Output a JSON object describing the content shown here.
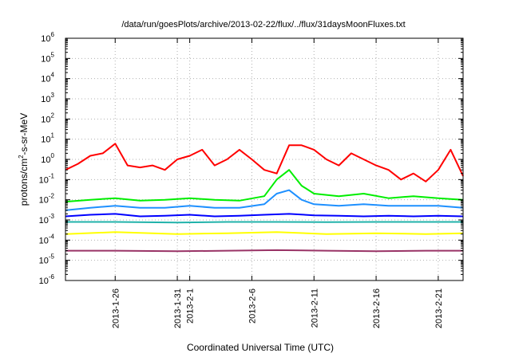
{
  "chart_data": {
    "type": "line",
    "title": "/data/run/goesPlots/archive/2013-02-22/flux/../flux/31daysMoonFluxes.txt",
    "xlabel": "Coordinated Universal Time (UTC)",
    "ylabel": "protons/cm2-s-sr-MeV",
    "ylabel_main": "protons/cm",
    "ylabel_sup": "2",
    "ylabel_rest": "-s-sr-MeV",
    "yscale": "log",
    "ylim": [
      1e-06,
      1000000.0
    ],
    "xlim": [
      "2013-01-22",
      "2013-02-23"
    ],
    "grid": true,
    "x_ticks": [
      {
        "date": "2013-01-26",
        "label": "2013-1-26"
      },
      {
        "date": "2013-01-31",
        "label": "2013-1-31"
      },
      {
        "date": "2013-02-01",
        "label": "2013-2-1"
      },
      {
        "date": "2013-02-06",
        "label": "2013-2-6"
      },
      {
        "date": "2013-02-11",
        "label": "2013-2-11"
      },
      {
        "date": "2013-02-16",
        "label": "2013-2-16"
      },
      {
        "date": "2013-02-21",
        "label": "2013-2-21"
      }
    ],
    "y_ticks": [
      {
        "value": 1e-06,
        "base": "10",
        "exp": "-6"
      },
      {
        "value": 1e-05,
        "base": "10",
        "exp": "-5"
      },
      {
        "value": 0.0001,
        "base": "10",
        "exp": "-4"
      },
      {
        "value": 0.001,
        "base": "10",
        "exp": "-3"
      },
      {
        "value": 0.01,
        "base": "10",
        "exp": "-2"
      },
      {
        "value": 0.1,
        "base": "10",
        "exp": "-1"
      },
      {
        "value": 1.0,
        "base": "10",
        "exp": "0"
      },
      {
        "value": 10.0,
        "base": "10",
        "exp": "1"
      },
      {
        "value": 100.0,
        "base": "10",
        "exp": "2"
      },
      {
        "value": 1000.0,
        "base": "10",
        "exp": "3"
      },
      {
        "value": 10000.0,
        "base": "10",
        "exp": "4"
      },
      {
        "value": 100000.0,
        "base": "10",
        "exp": "5"
      },
      {
        "value": 1000000.0,
        "base": "10",
        "exp": "6"
      }
    ],
    "series": [
      {
        "color": "#ff0000",
        "x": [
          "2013-01-22",
          "2013-01-23",
          "2013-01-24",
          "2013-01-25",
          "2013-01-26",
          "2013-01-27",
          "2013-01-28",
          "2013-01-29",
          "2013-01-30",
          "2013-01-31",
          "2013-02-01",
          "2013-02-02",
          "2013-02-03",
          "2013-02-04",
          "2013-02-05",
          "2013-02-06",
          "2013-02-07",
          "2013-02-08",
          "2013-02-09",
          "2013-02-10",
          "2013-02-11",
          "2013-02-12",
          "2013-02-13",
          "2013-02-14",
          "2013-02-15",
          "2013-02-16",
          "2013-02-17",
          "2013-02-18",
          "2013-02-19",
          "2013-02-20",
          "2013-02-21",
          "2013-02-22",
          "2013-02-23"
        ],
        "y": [
          0.3,
          0.6,
          1.5,
          2,
          6,
          0.5,
          0.4,
          0.5,
          0.3,
          1,
          1.5,
          3,
          0.5,
          1,
          3,
          1,
          0.3,
          0.2,
          5,
          5,
          3,
          1,
          0.5,
          2,
          1,
          0.5,
          0.3,
          0.1,
          0.2,
          0.08,
          0.3,
          3,
          0.15
        ]
      },
      {
        "color": "#00ee00",
        "x": [
          "2013-01-22",
          "2013-01-24",
          "2013-01-26",
          "2013-01-28",
          "2013-01-30",
          "2013-02-01",
          "2013-02-03",
          "2013-02-05",
          "2013-02-07",
          "2013-02-08",
          "2013-02-09",
          "2013-02-10",
          "2013-02-11",
          "2013-02-13",
          "2013-02-15",
          "2013-02-17",
          "2013-02-19",
          "2013-02-21",
          "2013-02-23"
        ],
        "y": [
          0.008,
          0.01,
          0.012,
          0.009,
          0.01,
          0.012,
          0.01,
          0.009,
          0.015,
          0.1,
          0.3,
          0.05,
          0.02,
          0.015,
          0.02,
          0.012,
          0.015,
          0.012,
          0.01
        ]
      },
      {
        "color": "#1e90ff",
        "x": [
          "2013-01-22",
          "2013-01-24",
          "2013-01-26",
          "2013-01-28",
          "2013-01-30",
          "2013-02-01",
          "2013-02-03",
          "2013-02-05",
          "2013-02-07",
          "2013-02-08",
          "2013-02-09",
          "2013-02-10",
          "2013-02-11",
          "2013-02-13",
          "2013-02-15",
          "2013-02-17",
          "2013-02-19",
          "2013-02-21",
          "2013-02-23"
        ],
        "y": [
          0.003,
          0.004,
          0.005,
          0.004,
          0.004,
          0.005,
          0.004,
          0.004,
          0.006,
          0.02,
          0.03,
          0.01,
          0.006,
          0.005,
          0.006,
          0.005,
          0.005,
          0.005,
          0.004
        ]
      },
      {
        "color": "#0000ff",
        "x": [
          "2013-01-22",
          "2013-01-24",
          "2013-01-26",
          "2013-01-28",
          "2013-01-30",
          "2013-02-01",
          "2013-02-03",
          "2013-02-05",
          "2013-02-07",
          "2013-02-09",
          "2013-02-11",
          "2013-02-13",
          "2013-02-15",
          "2013-02-17",
          "2013-02-19",
          "2013-02-21",
          "2013-02-23"
        ],
        "y": [
          0.0015,
          0.0018,
          0.002,
          0.0015,
          0.0016,
          0.0018,
          0.0015,
          0.0016,
          0.0018,
          0.002,
          0.0017,
          0.0016,
          0.0015,
          0.0016,
          0.0015,
          0.0016,
          0.0015
        ]
      },
      {
        "color": "#20b2aa",
        "x": [
          "2013-01-22",
          "2013-01-26",
          "2013-01-31",
          "2013-02-04",
          "2013-02-08",
          "2013-02-12",
          "2013-02-16",
          "2013-02-20",
          "2013-02-23"
        ],
        "y": [
          0.0008,
          0.0008,
          0.00075,
          0.0008,
          0.0008,
          0.00078,
          0.0008,
          0.0008,
          0.0008
        ]
      },
      {
        "color": "#ffff00",
        "x": [
          "2013-01-22",
          "2013-01-26",
          "2013-01-31",
          "2013-02-04",
          "2013-02-08",
          "2013-02-12",
          "2013-02-16",
          "2013-02-20",
          "2013-02-23"
        ],
        "y": [
          0.0002,
          0.00025,
          0.0002,
          0.00022,
          0.00025,
          0.0002,
          0.00022,
          0.0002,
          0.00022
        ]
      },
      {
        "color": "#993366",
        "x": [
          "2013-01-22",
          "2013-01-26",
          "2013-01-31",
          "2013-02-04",
          "2013-02-08",
          "2013-02-12",
          "2013-02-16",
          "2013-02-20",
          "2013-02-23"
        ],
        "y": [
          3e-05,
          3e-05,
          2.8e-05,
          3e-05,
          3.2e-05,
          3e-05,
          2.8e-05,
          3e-05,
          3e-05
        ]
      }
    ]
  }
}
